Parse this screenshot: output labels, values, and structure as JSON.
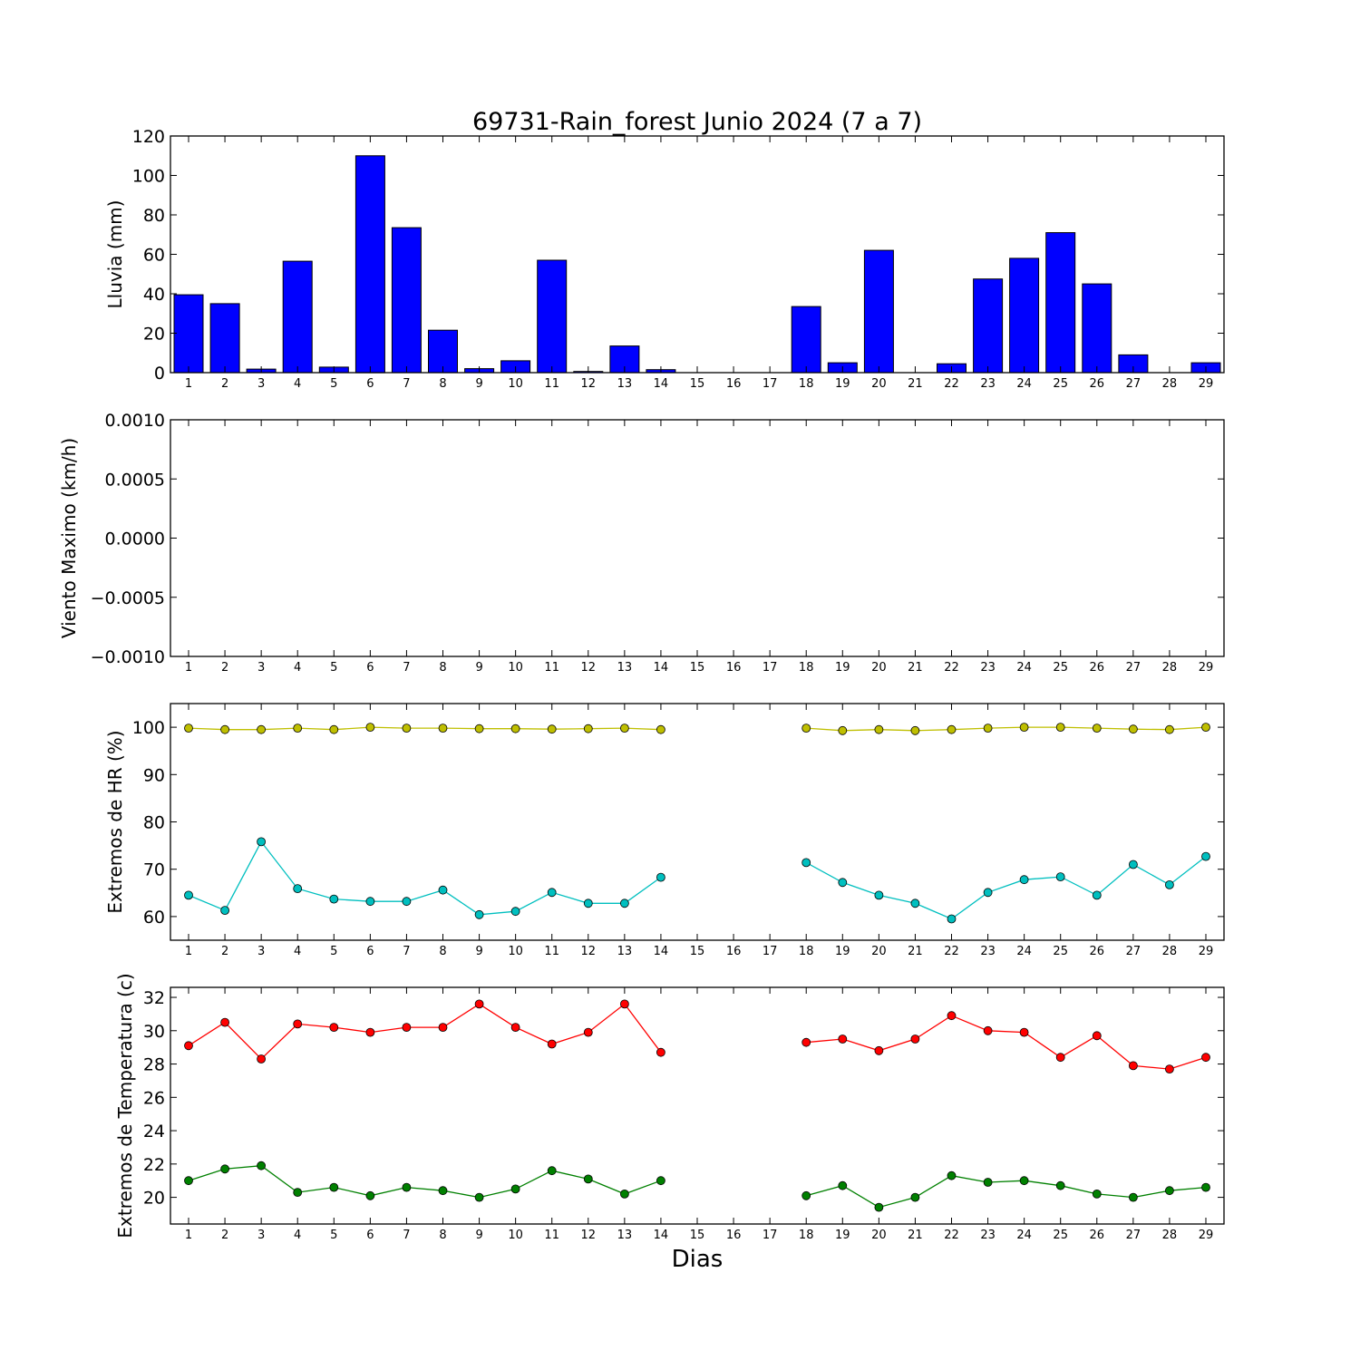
{
  "title": "69731-Rain_forest Junio 2024  (7 a 7)",
  "xlabel": "Dias",
  "days": [
    "1",
    "2",
    "3",
    "4",
    "5",
    "6",
    "7",
    "8",
    "9",
    "10",
    "11",
    "12",
    "13",
    "14",
    "15",
    "16",
    "17",
    "18",
    "19",
    "20",
    "21",
    "22",
    "23",
    "24",
    "25",
    "26",
    "27",
    "28",
    "29"
  ],
  "chart_data": [
    {
      "type": "bar",
      "ylabel": "Lluvia (mm)",
      "ylim": [
        0,
        120
      ],
      "yticks": [
        0,
        20,
        40,
        60,
        80,
        100,
        120
      ],
      "ytick_labels": [
        "0",
        "20",
        "40",
        "60",
        "80",
        "100",
        "120"
      ],
      "grid": false,
      "series": [
        {
          "color": "#0000ff",
          "values": [
            39.5,
            35,
            1.8,
            56.5,
            2.8,
            110,
            73.5,
            21.5,
            2,
            6,
            57,
            0.6,
            13.5,
            1.5,
            0,
            0,
            0,
            33.5,
            5,
            62,
            0,
            4.5,
            47.5,
            58,
            71,
            45,
            9,
            0,
            5
          ]
        }
      ]
    },
    {
      "type": "line",
      "ylabel": "Viento Maximo (km/h)",
      "ylim": [
        -0.001,
        0.001
      ],
      "yticks": [
        -0.001,
        -0.0005,
        0,
        0.0005,
        0.001
      ],
      "ytick_labels": [
        "−0.0010",
        "−0.0005",
        "0.0000",
        "0.0005",
        "0.0010"
      ],
      "grid": false,
      "series": []
    },
    {
      "type": "line",
      "ylabel": "Extremos de HR (%)",
      "ylim": [
        55,
        105
      ],
      "yticks": [
        60,
        70,
        80,
        90,
        100
      ],
      "ytick_labels": [
        "60",
        "70",
        "80",
        "90",
        "100"
      ],
      "grid": false,
      "series": [
        {
          "color": "#bfbf00",
          "values": [
            99.8,
            99.5,
            99.5,
            99.8,
            99.5,
            100,
            99.8,
            99.8,
            99.7,
            99.7,
            99.6,
            99.7,
            99.8,
            99.5,
            null,
            null,
            null,
            99.8,
            99.3,
            99.5,
            99.3,
            99.5,
            99.8,
            100,
            100,
            99.8,
            99.6,
            99.5,
            100
          ]
        },
        {
          "color": "#00bfbf",
          "values": [
            64.5,
            61.3,
            75.8,
            65.9,
            63.7,
            63.2,
            63.2,
            65.6,
            60.4,
            61.1,
            65.1,
            62.8,
            62.8,
            68.3,
            null,
            null,
            null,
            71.4,
            67.2,
            64.5,
            62.8,
            59.5,
            65.1,
            67.8,
            68.4,
            64.5,
            71,
            66.7,
            72.7
          ]
        }
      ]
    },
    {
      "type": "line",
      "ylabel": "Extremos de Temperatura (c)",
      "ylim": [
        18.4,
        32.6
      ],
      "yticks": [
        20,
        22,
        24,
        26,
        28,
        30,
        32
      ],
      "ytick_labels": [
        "20",
        "22",
        "24",
        "26",
        "28",
        "30",
        "32"
      ],
      "grid": false,
      "series": [
        {
          "color": "#ff0000",
          "values": [
            29.1,
            30.5,
            28.3,
            30.4,
            30.2,
            29.9,
            30.2,
            30.2,
            31.6,
            30.2,
            29.2,
            29.9,
            31.6,
            28.7,
            null,
            null,
            null,
            29.3,
            29.5,
            28.8,
            29.5,
            30.9,
            30,
            29.9,
            28.4,
            29.7,
            27.9,
            27.7,
            28.4
          ]
        },
        {
          "color": "#008000",
          "values": [
            21,
            21.7,
            21.9,
            20.3,
            20.6,
            20.1,
            20.6,
            20.4,
            20,
            20.5,
            21.6,
            21.1,
            20.2,
            21,
            null,
            null,
            null,
            20.1,
            20.7,
            19.4,
            20,
            21.3,
            20.9,
            21,
            20.7,
            20.2,
            20,
            20.4,
            20.6
          ]
        }
      ]
    }
  ]
}
